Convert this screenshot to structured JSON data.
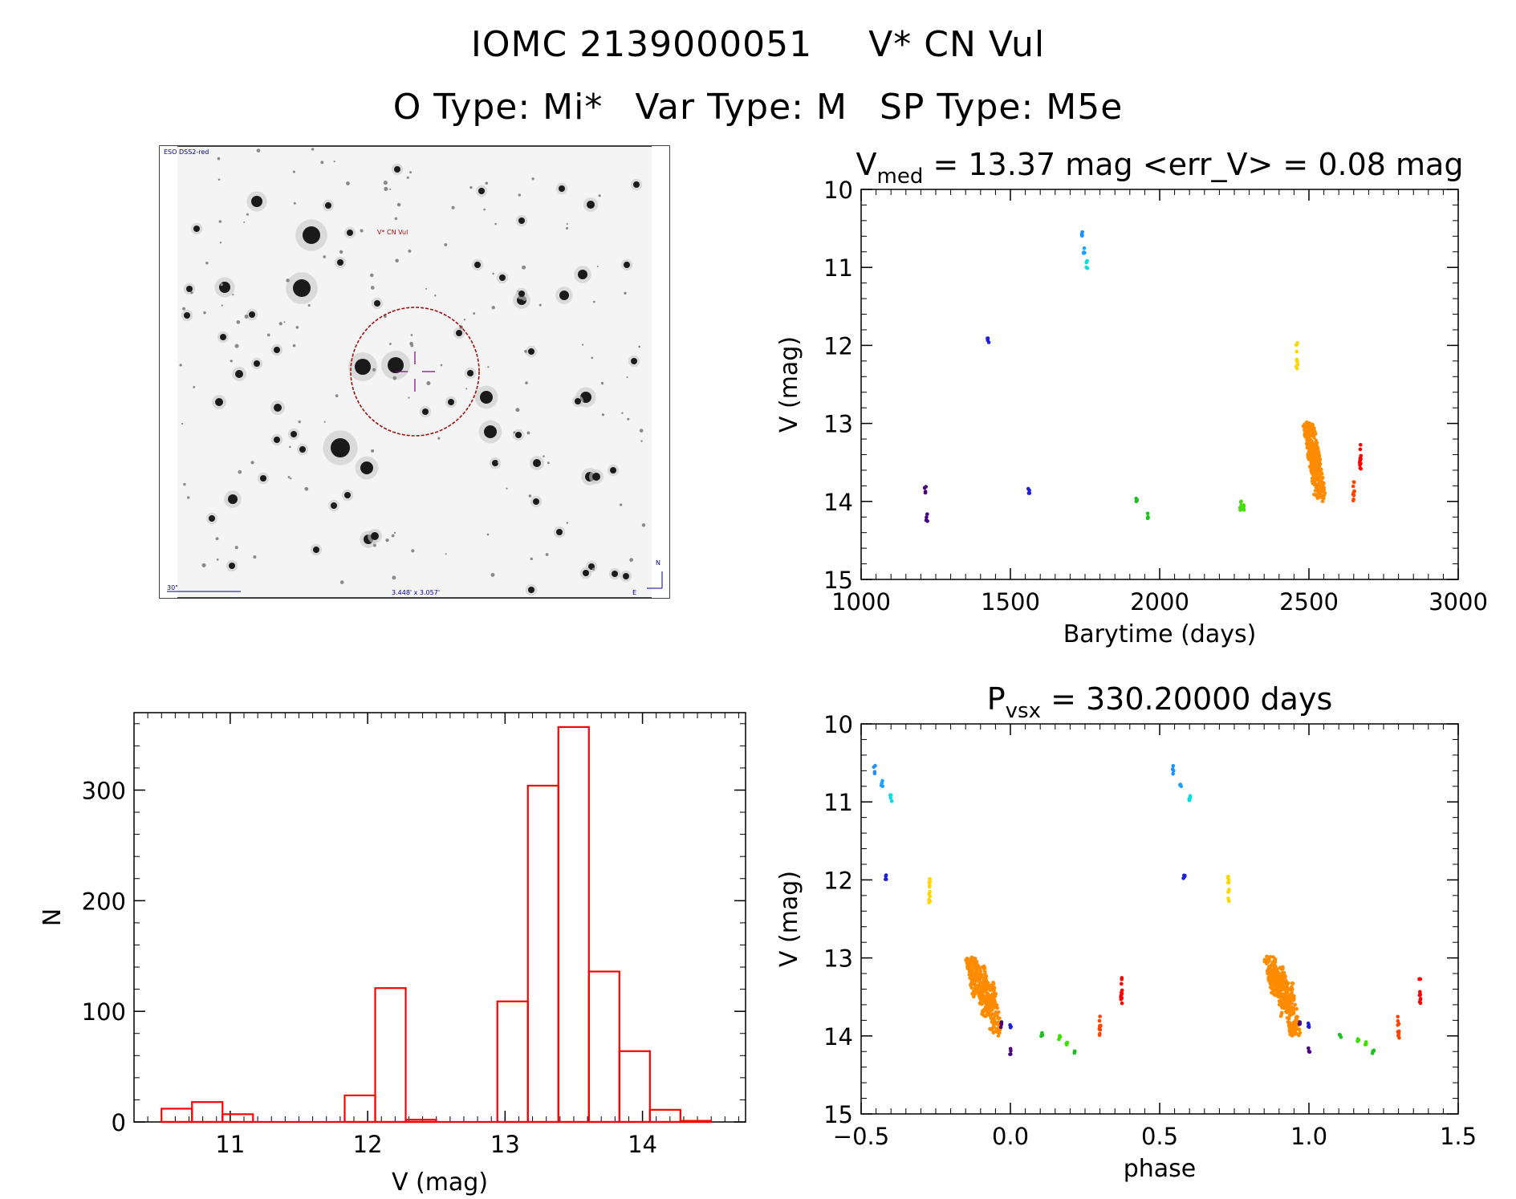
{
  "header": {
    "id": "IOMC 2139000051",
    "name": "V* CN Vul",
    "otype": "O Type: Mi*",
    "vartype": "Var Type: M",
    "sptype": "SP Type: M5e"
  },
  "finder": {
    "survey_label": "ESO DSS2-red",
    "target_label": "V* CN Vul",
    "scale_label": "30\"",
    "fov_label": "3.448' x 3.057'",
    "north_label": "N",
    "east_label": "E"
  },
  "colors": {
    "histogram": "#ff0000",
    "target_circle": "#a01010",
    "crosshair": "#800080",
    "finder_labels": "#00008b"
  },
  "chart_data": [
    {
      "id": "lightcurve",
      "type": "scatter",
      "title_main": "V",
      "title_sub": "med",
      "title_rest": " = 13.37 mag <err_V> = 0.08 mag",
      "xlabel": "Barytime (days)",
      "ylabel": "V (mag)",
      "xlim": [
        1000,
        3000
      ],
      "ylim": [
        15,
        10
      ],
      "xticks": [
        1000,
        1500,
        2000,
        2500,
        3000
      ],
      "yticks": [
        10,
        11,
        12,
        13,
        14,
        15
      ],
      "groups": [
        {
          "color": "#4b0082",
          "x": 1215,
          "ymin": 13.8,
          "ymax": 13.9
        },
        {
          "color": "#4b0082",
          "x": 1220,
          "ymin": 14.15,
          "ymax": 14.28
        },
        {
          "color": "#1e1ee0",
          "x": 1425,
          "ymin": 11.9,
          "ymax": 12.0
        },
        {
          "color": "#1e1ee0",
          "x": 1562,
          "ymin": 13.83,
          "ymax": 13.9
        },
        {
          "color": "#1e90ff",
          "x": 1740,
          "ymin": 10.52,
          "ymax": 10.65
        },
        {
          "color": "#1ea0ff",
          "x": 1748,
          "ymin": 10.72,
          "ymax": 10.82
        },
        {
          "color": "#00e0e0",
          "x": 1757,
          "ymin": 10.9,
          "ymax": 11.05
        },
        {
          "color": "#20c020",
          "x": 1922,
          "ymin": 13.93,
          "ymax": 14.02
        },
        {
          "color": "#20c020",
          "x": 1960,
          "ymin": 14.12,
          "ymax": 14.23
        },
        {
          "color": "#40e000",
          "x": 2272,
          "ymin": 13.98,
          "ymax": 14.12
        },
        {
          "color": "#40e000",
          "x": 2280,
          "ymin": 14.02,
          "ymax": 14.12
        },
        {
          "color": "#ffd700",
          "x": 2460,
          "ymin": 11.95,
          "ymax": 12.3
        },
        {
          "color": "#ff8c00",
          "x": 2510,
          "ymin": 12.98,
          "ymax": 13.6
        },
        {
          "color": "#ff8c00",
          "x": 2518,
          "ymin": 13.1,
          "ymax": 13.8
        },
        {
          "color": "#ff8c00",
          "x": 2526,
          "ymin": 13.3,
          "ymax": 14.0
        },
        {
          "color": "#ff4500",
          "x": 2650,
          "ymin": 13.75,
          "ymax": 14.05
        },
        {
          "color": "#ff0000",
          "x": 2672,
          "ymin": 13.25,
          "ymax": 13.6
        }
      ]
    },
    {
      "id": "phased",
      "type": "scatter",
      "title_main": "P",
      "title_sub": "vsx",
      "title_rest": " = 330.20000 days",
      "xlabel": "phase",
      "ylabel": "V (mag)",
      "xlim": [
        -0.5,
        1.5
      ],
      "ylim": [
        15,
        10
      ],
      "xticks": [
        -0.5,
        0.0,
        0.5,
        1.0,
        1.5
      ],
      "xtick_labels": [
        "−0.5",
        "0.0",
        "0.5",
        "1.0",
        "1.5"
      ],
      "yticks": [
        10,
        11,
        12,
        13,
        14,
        15
      ],
      "groups": [
        {
          "color": "#1e90ff",
          "x": -0.455,
          "ymin": 10.52,
          "ymax": 10.65
        },
        {
          "color": "#1ea0ff",
          "x": -0.43,
          "ymin": 10.72,
          "ymax": 10.82
        },
        {
          "color": "#00e0e0",
          "x": -0.4,
          "ymin": 10.9,
          "ymax": 11.05
        },
        {
          "color": "#1e1ee0",
          "x": -0.418,
          "ymin": 11.9,
          "ymax": 12.0
        },
        {
          "color": "#ffd700",
          "x": -0.27,
          "ymin": 11.95,
          "ymax": 12.3
        },
        {
          "color": "#ff8c00",
          "x": -0.12,
          "ymin": 12.98,
          "ymax": 13.5
        },
        {
          "color": "#ff8c00",
          "x": -0.09,
          "ymin": 13.1,
          "ymax": 13.75
        },
        {
          "color": "#ff8c00",
          "x": -0.06,
          "ymin": 13.3,
          "ymax": 14.0
        },
        {
          "color": "#4b0082",
          "x": -0.03,
          "ymin": 13.8,
          "ymax": 13.9
        },
        {
          "color": "#4b0082",
          "x": 0.0,
          "ymin": 14.15,
          "ymax": 14.28
        },
        {
          "color": "#1e1ee0",
          "x": 0.0,
          "ymin": 13.83,
          "ymax": 13.9
        },
        {
          "color": "#20c020",
          "x": 0.105,
          "ymin": 13.93,
          "ymax": 14.02
        },
        {
          "color": "#40e000",
          "x": 0.165,
          "ymin": 13.98,
          "ymax": 14.08
        },
        {
          "color": "#40e000",
          "x": 0.19,
          "ymin": 14.05,
          "ymax": 14.12
        },
        {
          "color": "#20c020",
          "x": 0.215,
          "ymin": 14.12,
          "ymax": 14.23
        },
        {
          "color": "#ff4500",
          "x": 0.3,
          "ymin": 13.75,
          "ymax": 14.05
        },
        {
          "color": "#ff0000",
          "x": 0.372,
          "ymin": 13.25,
          "ymax": 13.6
        },
        {
          "color": "#1e90ff",
          "x": 0.545,
          "ymin": 10.52,
          "ymax": 10.65
        },
        {
          "color": "#1ea0ff",
          "x": 0.57,
          "ymin": 10.72,
          "ymax": 10.82
        },
        {
          "color": "#00e0e0",
          "x": 0.6,
          "ymin": 10.9,
          "ymax": 11.05
        },
        {
          "color": "#1e1ee0",
          "x": 0.582,
          "ymin": 11.9,
          "ymax": 12.0
        },
        {
          "color": "#ffd700",
          "x": 0.73,
          "ymin": 11.95,
          "ymax": 12.3
        },
        {
          "color": "#ff8c00",
          "x": 0.88,
          "ymin": 12.98,
          "ymax": 13.5
        },
        {
          "color": "#ff8c00",
          "x": 0.91,
          "ymin": 13.1,
          "ymax": 13.75
        },
        {
          "color": "#ff8c00",
          "x": 0.94,
          "ymin": 13.3,
          "ymax": 14.0
        },
        {
          "color": "#4b0082",
          "x": 0.97,
          "ymin": 13.8,
          "ymax": 13.9
        },
        {
          "color": "#4b0082",
          "x": 1.0,
          "ymin": 14.15,
          "ymax": 14.28
        },
        {
          "color": "#1e1ee0",
          "x": 1.0,
          "ymin": 13.83,
          "ymax": 13.9
        },
        {
          "color": "#20c020",
          "x": 1.105,
          "ymin": 13.93,
          "ymax": 14.02
        },
        {
          "color": "#40e000",
          "x": 1.165,
          "ymin": 13.98,
          "ymax": 14.08
        },
        {
          "color": "#40e000",
          "x": 1.19,
          "ymin": 14.05,
          "ymax": 14.12
        },
        {
          "color": "#20c020",
          "x": 1.215,
          "ymin": 14.12,
          "ymax": 14.23
        },
        {
          "color": "#ff4500",
          "x": 1.3,
          "ymin": 13.75,
          "ymax": 14.05
        },
        {
          "color": "#ff0000",
          "x": 1.372,
          "ymin": 13.25,
          "ymax": 13.6
        }
      ]
    },
    {
      "id": "histogram",
      "type": "bar",
      "xlabel": "V (mag)",
      "ylabel": "N",
      "xlim": [
        10.3,
        14.75
      ],
      "ylim": [
        0,
        370
      ],
      "xticks": [
        11,
        12,
        13,
        14
      ],
      "yticks": [
        0,
        100,
        200,
        300
      ],
      "bin_width": 0.222,
      "bins": [
        {
          "x0": 10.5,
          "value": 12
        },
        {
          "x0": 10.722,
          "value": 18
        },
        {
          "x0": 10.944,
          "value": 7
        },
        {
          "x0": 11.833,
          "value": 24
        },
        {
          "x0": 12.055,
          "value": 121
        },
        {
          "x0": 12.277,
          "value": 2
        },
        {
          "x0": 12.944,
          "value": 109
        },
        {
          "x0": 13.166,
          "value": 304
        },
        {
          "x0": 13.388,
          "value": 357
        },
        {
          "x0": 13.61,
          "value": 136
        },
        {
          "x0": 13.832,
          "value": 64
        },
        {
          "x0": 14.054,
          "value": 11
        },
        {
          "x0": 14.276,
          "value": 1
        }
      ]
    }
  ]
}
